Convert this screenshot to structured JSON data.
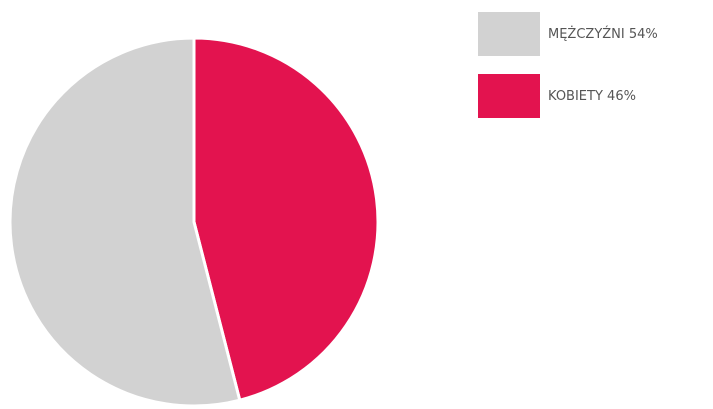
{
  "chart_data": {
    "type": "pie",
    "categories": [
      "MĘŻCZYŹNI",
      "KOBIETY"
    ],
    "values": [
      54,
      46
    ],
    "value_labels": [
      "54%",
      "46%"
    ],
    "colors": [
      "#d2d2d2",
      "#e3134f"
    ],
    "legend": "top-right"
  }
}
